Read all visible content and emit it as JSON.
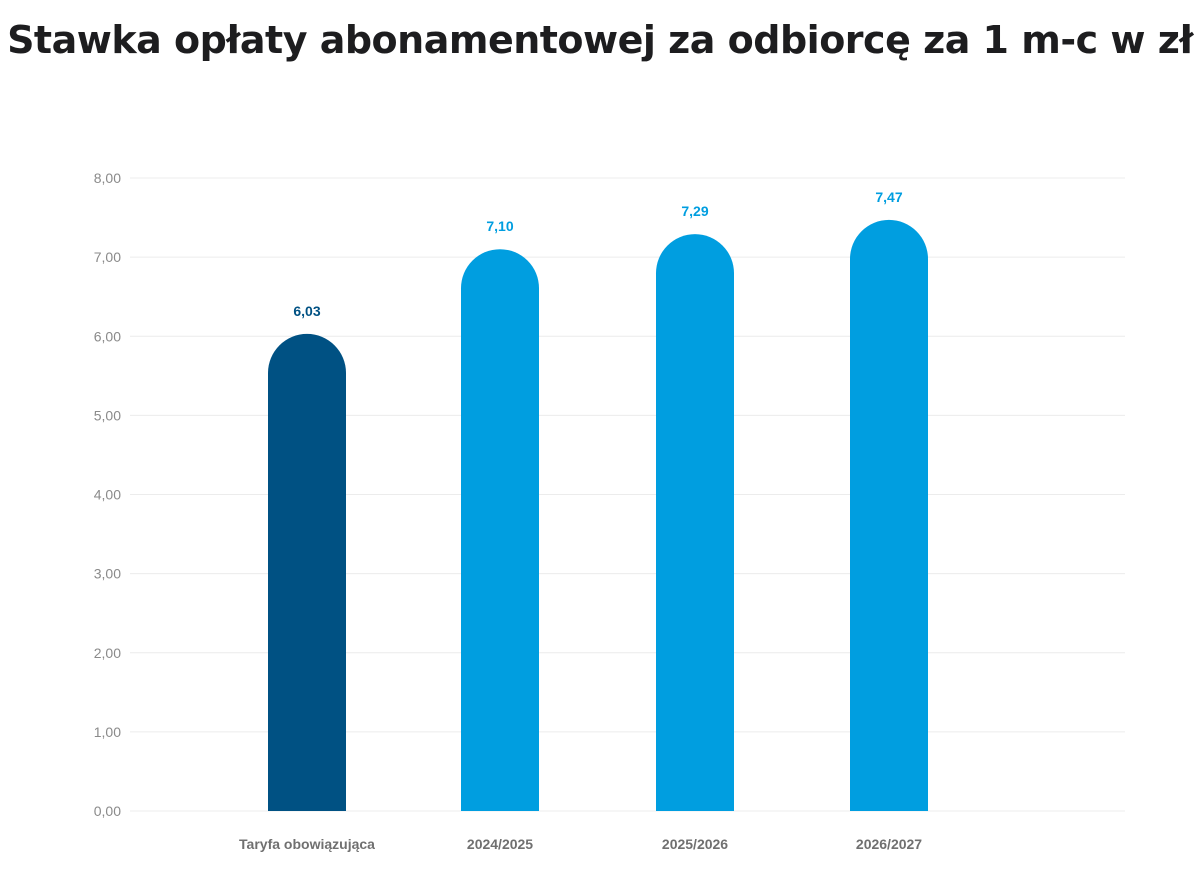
{
  "chart_data": {
    "type": "bar",
    "title": "Stawka opłaty abonamentowej za odbiorcę za 1 m-c w zł",
    "categories": [
      "Taryfa obowiązująca",
      "2024/2025",
      "2025/2026",
      "2026/2027"
    ],
    "values": [
      6.03,
      7.1,
      7.29,
      7.47
    ],
    "value_labels": [
      "6,03",
      "7,10",
      "7,29",
      "7,47"
    ],
    "bar_colors": [
      "#005183",
      "#009ee0",
      "#009ee0",
      "#009ee0"
    ],
    "ylim": [
      0,
      8
    ],
    "yticks": [
      0,
      1,
      2,
      3,
      4,
      5,
      6,
      7,
      8
    ],
    "ytick_labels": [
      "0,00",
      "1,00",
      "2,00",
      "3,00",
      "4,00",
      "5,00",
      "6,00",
      "7,00",
      "8,00"
    ],
    "xlabel": "",
    "ylabel": "",
    "grid": true
  }
}
